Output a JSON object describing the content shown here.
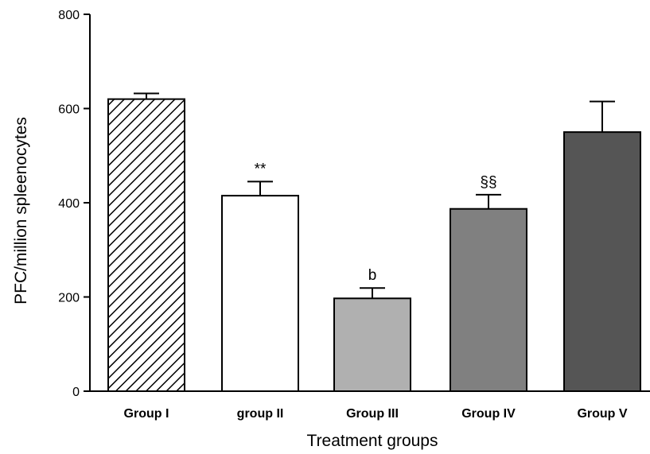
{
  "chart_data": {
    "type": "bar",
    "title": "",
    "xlabel": "Treatment groups",
    "ylabel": "PFC/million spleenocytes",
    "ylim": [
      0,
      800
    ],
    "yticks": [
      0,
      200,
      400,
      600,
      800
    ],
    "grid": false,
    "legend": "none",
    "categories": [
      "Group I",
      "group II",
      "Group III",
      "Group IV",
      "Group V"
    ],
    "values": [
      620,
      415,
      197,
      387,
      550
    ],
    "errors": [
      12,
      30,
      22,
      30,
      65
    ],
    "annotations": [
      "",
      "**",
      "b",
      "§§",
      ""
    ],
    "fills": [
      "hatch",
      "#ffffff",
      "#b0b0b0",
      "#808080",
      "#555555"
    ]
  }
}
